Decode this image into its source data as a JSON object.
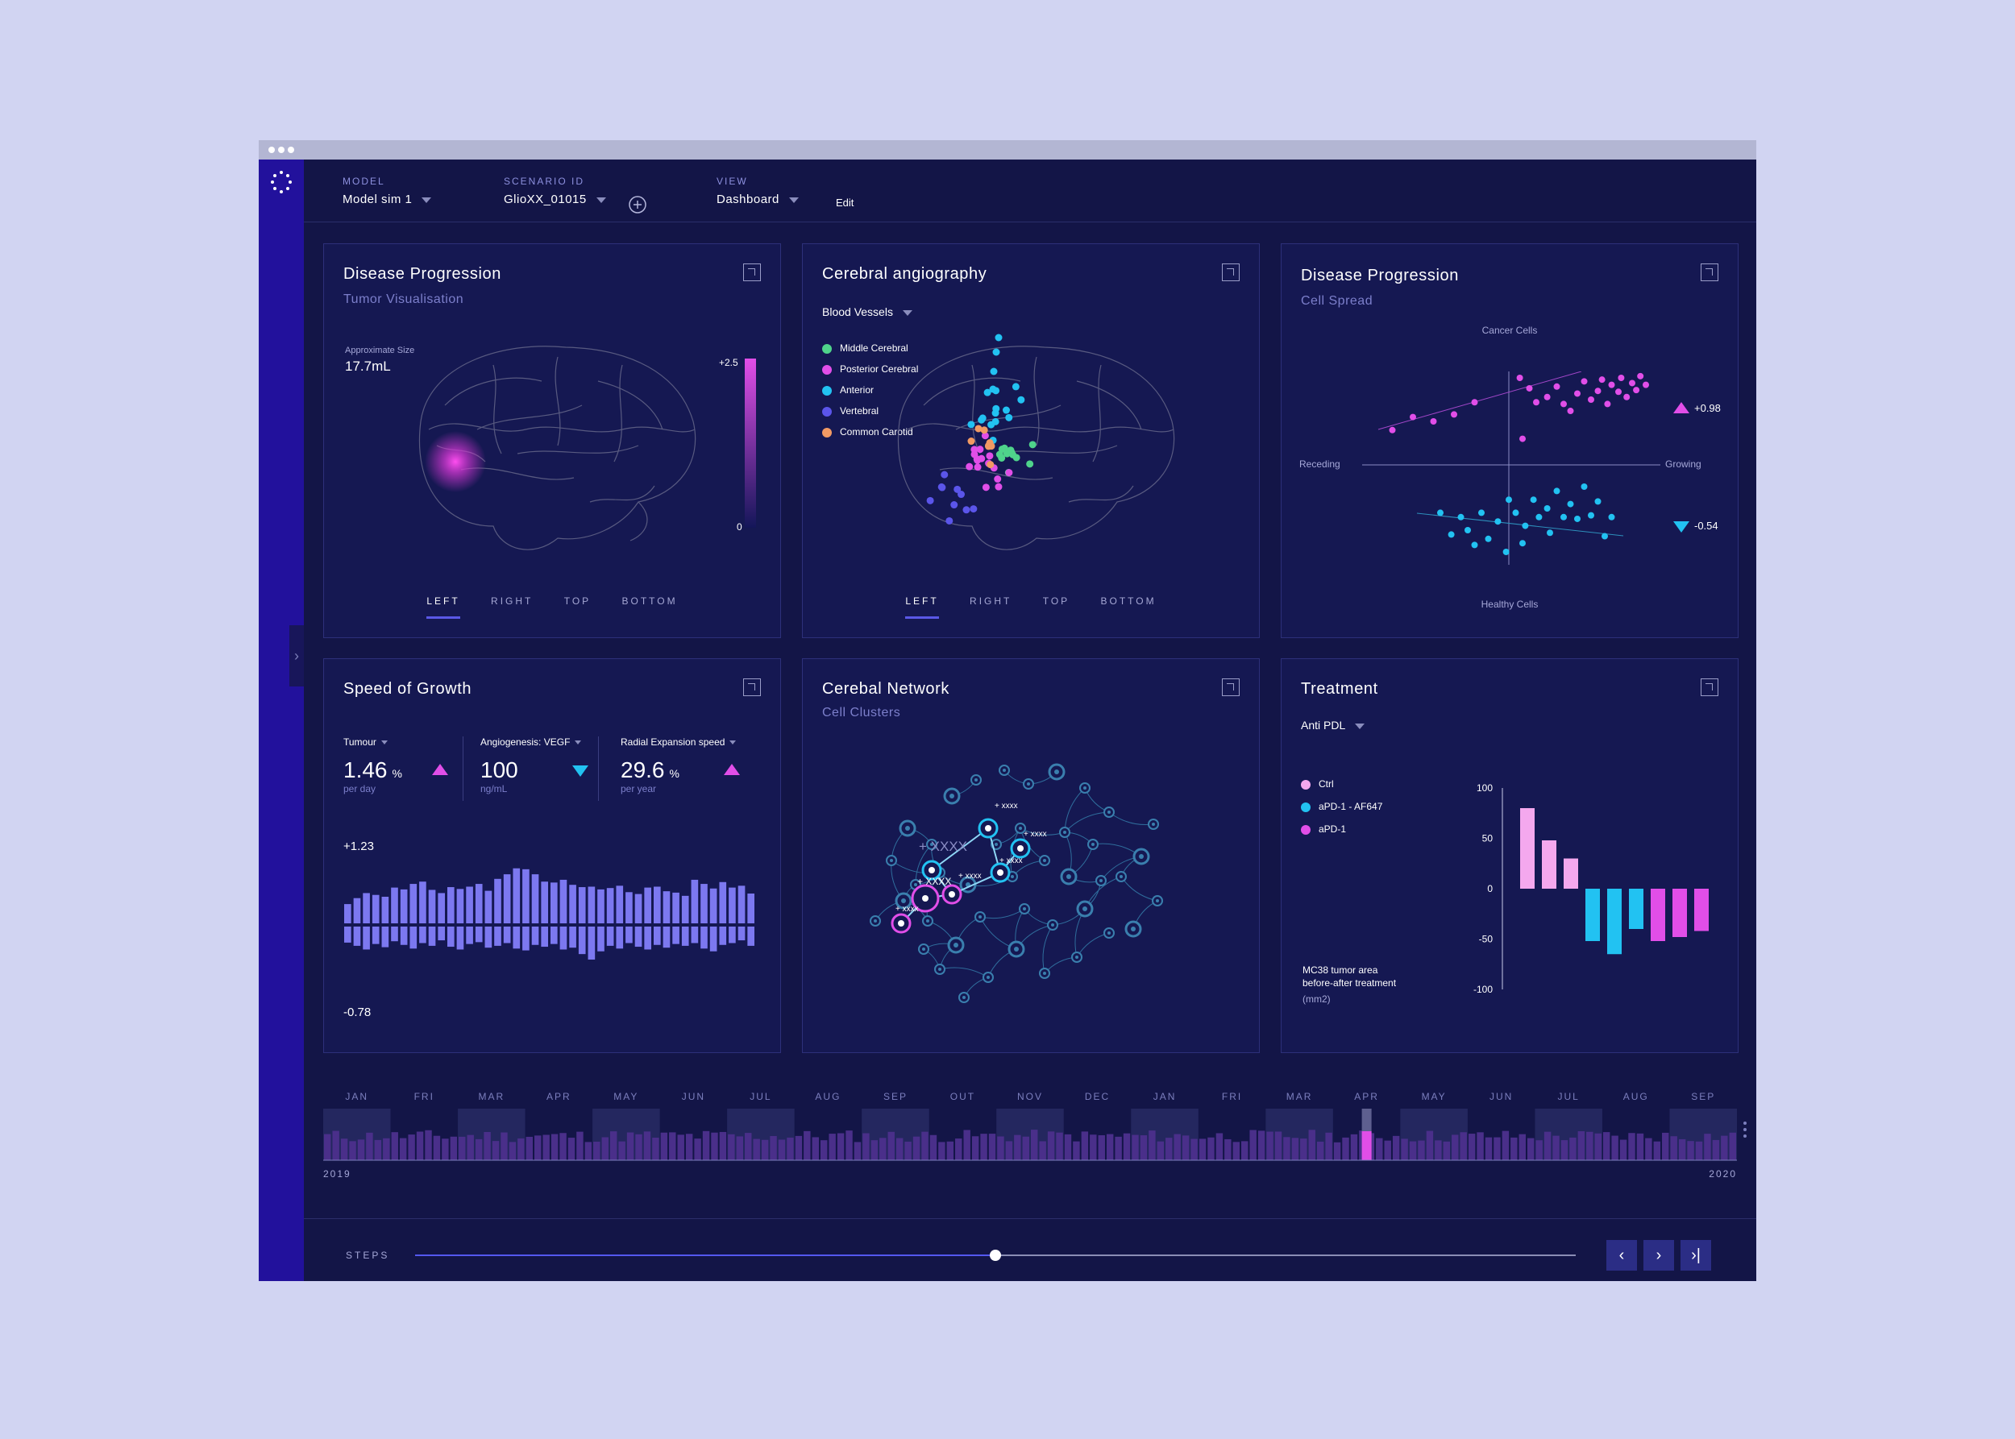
{
  "toolbar": {
    "model": {
      "label": "MODEL",
      "value": "Model sim 1"
    },
    "scenario": {
      "label": "SCENARIO ID",
      "value": "GlioXX_01015"
    },
    "view": {
      "label": "VIEW",
      "value": "Dashboard"
    },
    "edit": "Edit"
  },
  "panels": {
    "tumor": {
      "title": "Disease Progression",
      "subtitle": "Tumor Visualisation",
      "size_label": "Approximate Size",
      "size_value": "17.7mL",
      "scale_max": "+2.5",
      "scale_min": "0",
      "tabs": [
        "LEFT",
        "RIGHT",
        "TOP",
        "BOTTOM"
      ]
    },
    "angio": {
      "title": "Cerebral angiography",
      "dropdown": "Blood Vessels",
      "legend": [
        {
          "label": "Middle Cerebral",
          "color": "#4fd38b"
        },
        {
          "label": "Posterior Cerebral",
          "color": "#e14ee8"
        },
        {
          "label": "Anterior",
          "color": "#22c2f2"
        },
        {
          "label": "Vertebral",
          "color": "#5b55ea"
        },
        {
          "label": "Common Carotid",
          "color": "#f29a64"
        }
      ],
      "tabs": [
        "LEFT",
        "RIGHT",
        "TOP",
        "BOTTOM"
      ]
    },
    "spread": {
      "title": "Disease Progression",
      "subtitle": "Cell Spread",
      "top_label": "Cancer Cells",
      "bottom_label": "Healthy Cells",
      "left_label": "Receding",
      "right_label": "Growing",
      "up_value": "+0.98",
      "down_value": "-0.54"
    },
    "growth": {
      "title": "Speed of Growth",
      "metrics": [
        {
          "label": "Tumour",
          "value": "1.46",
          "unit": "%",
          "sub": "per day"
        },
        {
          "label": "Angiogenesis: VEGF",
          "value": "100",
          "unit": "",
          "sub": "ng/mL"
        },
        {
          "label": "Radial Expansion speed",
          "value": "29.6",
          "unit": "%",
          "sub": "per year"
        }
      ],
      "max_label": "+1.23",
      "min_label": "-0.78"
    },
    "network": {
      "title": "Cerebal Network",
      "subtitle": "Cell Clusters",
      "node_label": "xxxx",
      "big_label": "+ XXXX",
      "mid_label": "+ XXXX"
    },
    "treatment": {
      "title": "Treatment",
      "dropdown": "Anti PDL",
      "legend": [
        {
          "label": "Ctrl",
          "color": "#f4a8ee"
        },
        {
          "label": "aPD-1 - AF647",
          "color": "#22c2f2"
        },
        {
          "label": "aPD-1",
          "color": "#e14ee8"
        }
      ],
      "note_line1": "MC38 tumor area",
      "note_line2": "before-after treatment",
      "note_unit": "(mm2)"
    }
  },
  "chart_data": [
    {
      "type": "bar",
      "title": "Treatment",
      "ylim": [
        -100,
        100
      ],
      "yticks": [
        "100",
        "50",
        "0",
        "-50",
        "-100"
      ],
      "series": [
        {
          "name": "Ctrl",
          "values": [
            80,
            48,
            30
          ]
        },
        {
          "name": "aPD-1 - AF647",
          "values": [
            -52,
            -65,
            -40
          ]
        },
        {
          "name": "aPD-1",
          "values": [
            -52,
            -48,
            -42
          ]
        }
      ]
    },
    {
      "type": "bar",
      "title": "Speed of Growth",
      "ylim": [
        -0.78,
        1.23
      ],
      "up": [
        0.42,
        0.55,
        0.66,
        0.62,
        0.58,
        0.78,
        0.74,
        0.86,
        0.91,
        0.73,
        0.66,
        0.79,
        0.75,
        0.8,
        0.86,
        0.71,
        0.97,
        1.07,
        1.2,
        1.18,
        1.07,
        0.91,
        0.89,
        0.95,
        0.84,
        0.79,
        0.8,
        0.74,
        0.77,
        0.82,
        0.68,
        0.64,
        0.78,
        0.8,
        0.7,
        0.67,
        0.6,
        0.95,
        0.86,
        0.76,
        0.9,
        0.78,
        0.82,
        0.65
      ],
      "down": [
        -0.35,
        -0.42,
        -0.5,
        -0.38,
        -0.45,
        -0.32,
        -0.4,
        -0.48,
        -0.36,
        -0.42,
        -0.3,
        -0.44,
        -0.5,
        -0.38,
        -0.34,
        -0.46,
        -0.42,
        -0.36,
        -0.48,
        -0.52,
        -0.4,
        -0.44,
        -0.38,
        -0.5,
        -0.46,
        -0.6,
        -0.72,
        -0.54,
        -0.42,
        -0.48,
        -0.36,
        -0.44,
        -0.5,
        -0.4,
        -0.46,
        -0.38,
        -0.42,
        -0.36,
        -0.48,
        -0.54,
        -0.4,
        -0.36,
        -0.3,
        -0.42
      ]
    },
    {
      "type": "scatter",
      "title": "Cell Spread",
      "series": [
        {
          "name": "Cancer Cells",
          "r": 0.98,
          "points": [
            [
              -0.85,
              0.4
            ],
            [
              -0.7,
              0.55
            ],
            [
              -0.55,
              0.5
            ],
            [
              -0.4,
              0.58
            ],
            [
              -0.25,
              0.72
            ],
            [
              0.08,
              1.0
            ],
            [
              0.15,
              0.88
            ],
            [
              0.2,
              0.72
            ],
            [
              0.28,
              0.78
            ],
            [
              0.35,
              0.9
            ],
            [
              0.4,
              0.7
            ],
            [
              0.45,
              0.62
            ],
            [
              0.5,
              0.82
            ],
            [
              0.55,
              0.96
            ],
            [
              0.6,
              0.75
            ],
            [
              0.65,
              0.85
            ],
            [
              0.68,
              0.98
            ],
            [
              0.72,
              0.7
            ],
            [
              0.75,
              0.92
            ],
            [
              0.8,
              0.84
            ],
            [
              0.82,
              1.0
            ],
            [
              0.86,
              0.78
            ],
            [
              0.9,
              0.94
            ],
            [
              0.93,
              0.86
            ],
            [
              0.96,
              1.02
            ],
            [
              1.0,
              0.92
            ],
            [
              0.1,
              0.3
            ]
          ]
        },
        {
          "name": "Healthy Cells",
          "r": -0.54,
          "points": [
            [
              -0.5,
              -0.55
            ],
            [
              -0.42,
              -0.8
            ],
            [
              -0.35,
              -0.6
            ],
            [
              -0.3,
              -0.75
            ],
            [
              -0.2,
              -0.55
            ],
            [
              -0.15,
              -0.85
            ],
            [
              -0.08,
              -0.65
            ],
            [
              -0.02,
              -1.0
            ],
            [
              0.05,
              -0.55
            ],
            [
              0.1,
              -0.9
            ],
            [
              0.12,
              -0.7
            ],
            [
              0.18,
              -0.4
            ],
            [
              0.22,
              -0.6
            ],
            [
              0.28,
              -0.5
            ],
            [
              0.3,
              -0.78
            ],
            [
              0.35,
              -0.3
            ],
            [
              0.4,
              -0.6
            ],
            [
              0.45,
              -0.45
            ],
            [
              0.5,
              -0.62
            ],
            [
              0.55,
              -0.25
            ],
            [
              0.6,
              -0.58
            ],
            [
              0.65,
              -0.42
            ],
            [
              0.7,
              -0.82
            ],
            [
              0.75,
              -0.6
            ],
            [
              -0.25,
              -0.92
            ],
            [
              0.0,
              -0.4
            ]
          ]
        }
      ]
    }
  ],
  "timeline": {
    "months": [
      "JAN",
      "FRI",
      "MAR",
      "APR",
      "MAY",
      "JUN",
      "JUL",
      "AUG",
      "SEP",
      "OUT",
      "NOV",
      "DEC",
      "JAN",
      "FRI",
      "MAR",
      "APR",
      "MAY",
      "JUN",
      "JUL",
      "AUG",
      "SEP"
    ],
    "start_year": "2019",
    "end_year": "2020",
    "selected_month_index": 15
  },
  "steps": {
    "label": "STEPS",
    "progress": 0.5
  }
}
